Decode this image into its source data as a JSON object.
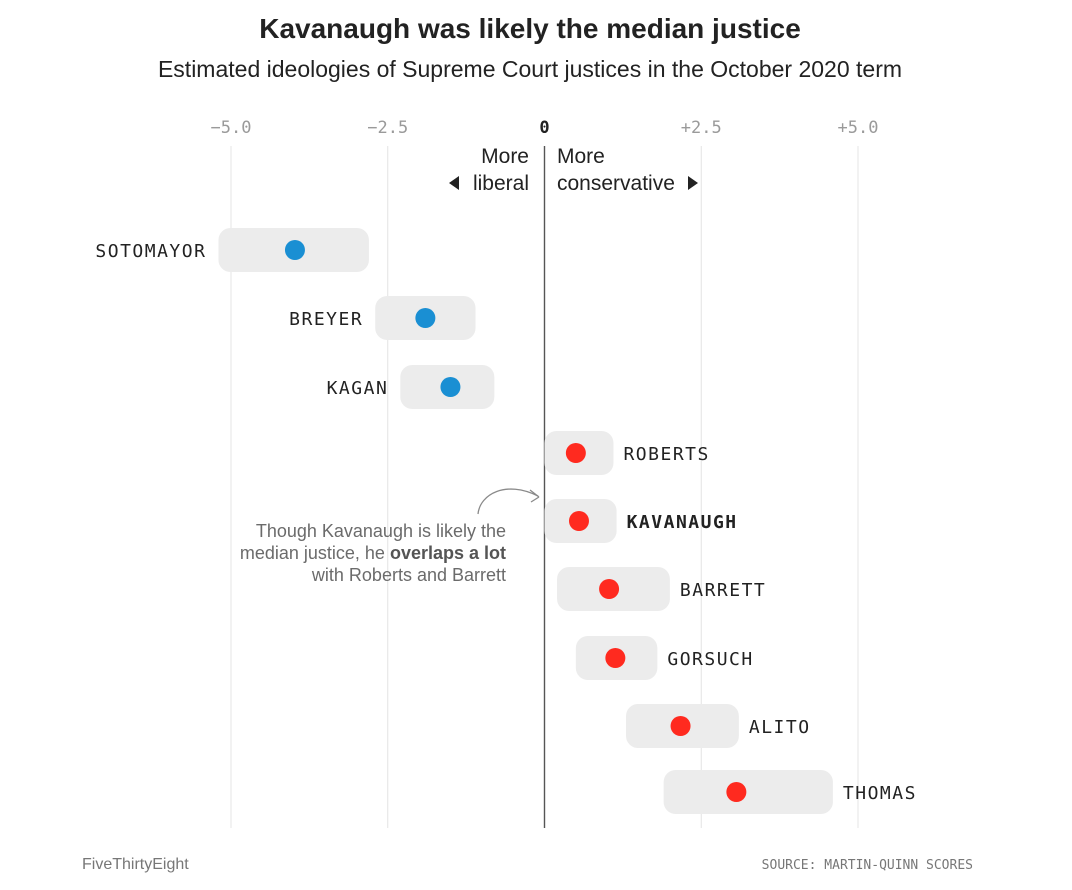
{
  "chart_data": {
    "type": "scatter",
    "title": "Kavanaugh was likely the median justice",
    "subtitle": "Estimated ideologies of Supreme Court justices in the October 2020 term",
    "x_ticks": [
      {
        "value": -5,
        "label": "−5.0"
      },
      {
        "value": -2.5,
        "label": "−2.5"
      },
      {
        "value": 0,
        "label": "0"
      },
      {
        "value": 2.5,
        "label": "+2.5"
      },
      {
        "value": 5,
        "label": "+5.0"
      }
    ],
    "xlim": [
      -5.0,
      5.0
    ],
    "direction_labels": {
      "liberal": {
        "line1": "More",
        "line2": "liberal"
      },
      "conservative": {
        "line1": "More",
        "line2": "conservative"
      }
    },
    "justices": [
      {
        "name": "SOTOMAYOR",
        "estimate": -3.98,
        "low": -5.2,
        "high": -2.8,
        "color": "#1a8fd3",
        "bold": false
      },
      {
        "name": "BREYER",
        "estimate": -1.9,
        "low": -2.7,
        "high": -1.1,
        "color": "#1a8fd3",
        "bold": false
      },
      {
        "name": "KAGAN",
        "estimate": -1.5,
        "low": -2.3,
        "high": -0.8,
        "color": "#1a8fd3",
        "bold": false
      },
      {
        "name": "ROBERTS",
        "estimate": 0.5,
        "low": 0.0,
        "high": 1.1,
        "color": "#ff2a1f",
        "bold": false
      },
      {
        "name": "KAVANAUGH",
        "estimate": 0.55,
        "low": 0.0,
        "high": 1.15,
        "color": "#ff2a1f",
        "bold": true
      },
      {
        "name": "BARRETT",
        "estimate": 1.03,
        "low": 0.2,
        "high": 2.0,
        "color": "#ff2a1f",
        "bold": false
      },
      {
        "name": "GORSUCH",
        "estimate": 1.13,
        "low": 0.5,
        "high": 1.8,
        "color": "#ff2a1f",
        "bold": false
      },
      {
        "name": "ALITO",
        "estimate": 2.17,
        "low": 1.3,
        "high": 3.1,
        "color": "#ff2a1f",
        "bold": false
      },
      {
        "name": "THOMAS",
        "estimate": 3.06,
        "low": 1.9,
        "high": 4.6,
        "color": "#ff2a1f",
        "bold": false
      }
    ],
    "annotation": {
      "line1": "Though Kavanaugh is likely the",
      "line2_normal": "median justice, he ",
      "line2_bold": "overlaps a lot",
      "line3": "with Roberts and Barrett"
    },
    "grid": true
  },
  "footer": {
    "brand": "FiveThirtyEight",
    "source": "SOURCE: MARTIN-QUINN SCORES"
  }
}
